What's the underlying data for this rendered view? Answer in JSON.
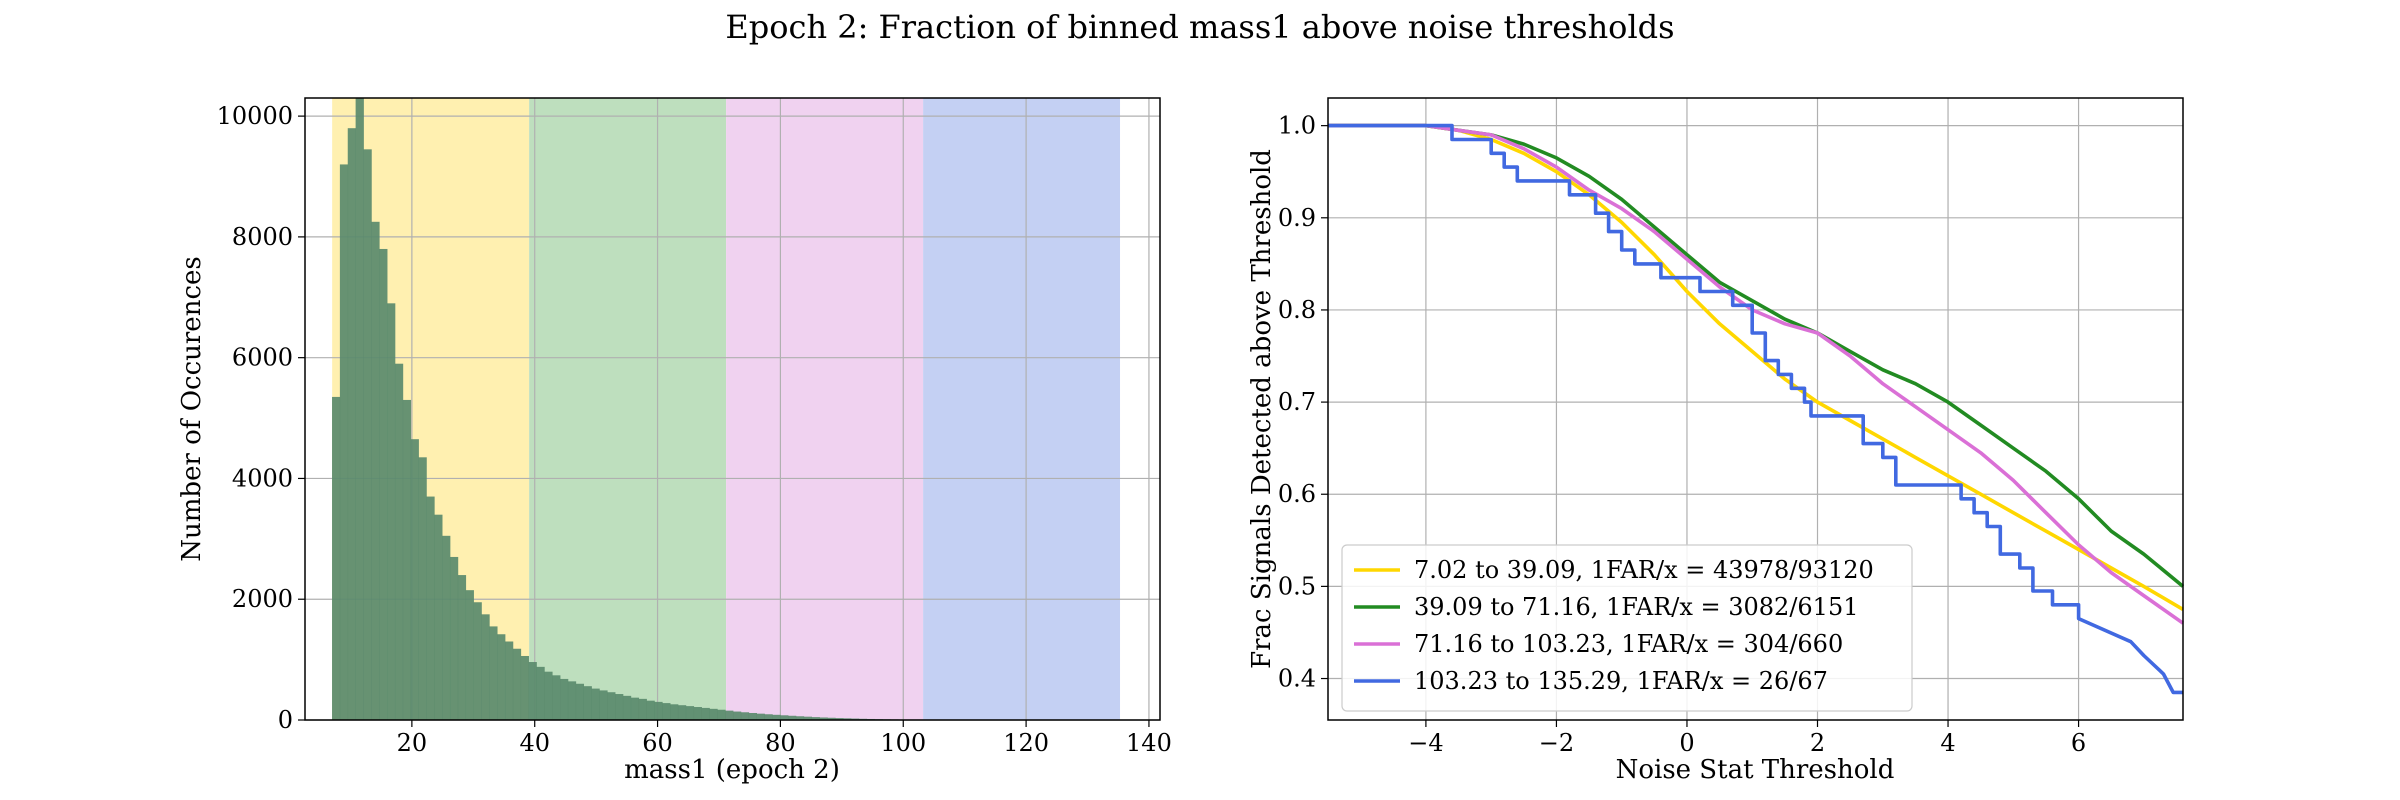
{
  "suptitle": "Epoch 2: Fraction of binned mass1 above noise thresholds",
  "chart_data": [
    {
      "type": "bar",
      "subtype": "histogram",
      "xlabel": "mass1 (epoch 2)",
      "ylabel": "Number of Occurences",
      "xlim": [
        2.6,
        141.8
      ],
      "ylim": [
        0,
        10300
      ],
      "xticks": [
        20,
        40,
        60,
        80,
        100,
        120,
        140
      ],
      "yticks": [
        0,
        2000,
        4000,
        6000,
        8000,
        10000
      ],
      "grid": true,
      "bar_color": "#5a8a6c",
      "shaded_bins": [
        {
          "start": 7.02,
          "end": 39.09,
          "color": "#fff0b0"
        },
        {
          "start": 39.09,
          "end": 71.16,
          "color": "#bedfbe"
        },
        {
          "start": 71.16,
          "end": 103.23,
          "color": "#f0d2f0"
        },
        {
          "start": 103.23,
          "end": 135.29,
          "color": "#c4d0f3"
        }
      ],
      "bin_start": 7.0,
      "bin_width": 1.28,
      "values": [
        5350,
        9200,
        9800,
        10400,
        9450,
        8250,
        7800,
        6900,
        5900,
        5300,
        4650,
        4350,
        3700,
        3400,
        3050,
        2700,
        2400,
        2150,
        1950,
        1750,
        1550,
        1420,
        1300,
        1180,
        1060,
        960,
        880,
        800,
        740,
        680,
        640,
        600,
        560,
        520,
        490,
        460,
        430,
        400,
        370,
        350,
        320,
        300,
        280,
        260,
        245,
        230,
        215,
        200,
        185,
        170,
        155,
        140,
        128,
        116,
        105,
        95,
        86,
        78,
        70,
        62,
        55,
        48,
        42,
        37,
        32,
        28,
        24,
        20,
        17,
        14,
        12,
        10,
        8,
        6,
        5,
        4,
        3,
        2
      ]
    },
    {
      "type": "line",
      "xlabel": "Noise Stat Threshold",
      "ylabel": "Frac Signals Detected above Threshold",
      "xlim": [
        -5.5,
        7.6
      ],
      "ylim": [
        0.355,
        1.03
      ],
      "xticks": [
        -4,
        -2,
        0,
        2,
        4,
        6
      ],
      "xtick_labels": [
        "−4",
        "−2",
        "0",
        "2",
        "4",
        "6"
      ],
      "yticks": [
        0.4,
        0.5,
        0.6,
        0.7,
        0.8,
        0.9,
        1.0
      ],
      "grid": true,
      "legend_position": "lower-left",
      "series": [
        {
          "name": "7.02 to 39.09, 1FAR/x = 43978/93120",
          "color": "#ffd700",
          "style": "smooth",
          "x": [
            -5.5,
            -4,
            -3.5,
            -3,
            -2.5,
            -2,
            -1.5,
            -1,
            -0.5,
            0,
            0.5,
            1,
            1.5,
            2,
            2.5,
            3,
            3.5,
            4,
            4.5,
            5,
            5.5,
            6,
            6.5,
            7,
            7.6
          ],
          "y": [
            1.0,
            1.0,
            0.995,
            0.985,
            0.97,
            0.95,
            0.925,
            0.895,
            0.86,
            0.82,
            0.785,
            0.755,
            0.725,
            0.7,
            0.68,
            0.66,
            0.64,
            0.62,
            0.6,
            0.58,
            0.56,
            0.54,
            0.52,
            0.5,
            0.475
          ]
        },
        {
          "name": "39.09 to 71.16, 1FAR/x = 3082/6151",
          "color": "#228b22",
          "style": "smooth",
          "x": [
            -5.5,
            -4,
            -3.5,
            -3,
            -2.5,
            -2,
            -1.5,
            -1,
            -0.5,
            0,
            0.5,
            1,
            1.5,
            2,
            2.5,
            3,
            3.5,
            4,
            4.5,
            5,
            5.5,
            6,
            6.5,
            7,
            7.6
          ],
          "y": [
            1.0,
            1.0,
            0.995,
            0.99,
            0.98,
            0.965,
            0.945,
            0.92,
            0.89,
            0.86,
            0.83,
            0.81,
            0.79,
            0.775,
            0.755,
            0.735,
            0.72,
            0.7,
            0.675,
            0.65,
            0.625,
            0.595,
            0.56,
            0.535,
            0.5
          ]
        },
        {
          "name": "71.16 to 103.23, 1FAR/x = 304/660",
          "color": "#da70d6",
          "style": "smooth",
          "x": [
            -5.5,
            -4,
            -3.5,
            -3,
            -2.5,
            -2,
            -1.5,
            -1,
            -0.5,
            0,
            0.5,
            1,
            1.5,
            2,
            2.5,
            3,
            3.5,
            4,
            4.5,
            5,
            5.5,
            6,
            6.5,
            7,
            7.6
          ],
          "y": [
            1.0,
            1.0,
            0.995,
            0.99,
            0.975,
            0.955,
            0.93,
            0.91,
            0.885,
            0.855,
            0.825,
            0.8,
            0.785,
            0.775,
            0.75,
            0.72,
            0.695,
            0.67,
            0.645,
            0.615,
            0.58,
            0.545,
            0.515,
            0.49,
            0.46
          ]
        },
        {
          "name": "103.23 to 135.29, 1FAR/x = 26/67",
          "color": "#4169e1",
          "style": "step",
          "x": [
            -5.5,
            -3.6,
            -3.6,
            -3.0,
            -3.0,
            -2.8,
            -2.8,
            -2.6,
            -2.6,
            -1.8,
            -1.8,
            -1.4,
            -1.4,
            -1.2,
            -1.2,
            -1.0,
            -1.0,
            -0.8,
            -0.8,
            -0.6,
            -0.6,
            -0.4,
            -0.4,
            -0.1,
            -0.1,
            0.2,
            0.2,
            0.7,
            0.7,
            1.0,
            1.0,
            1.2,
            1.2,
            1.4,
            1.4,
            1.6,
            1.6,
            1.8,
            1.8,
            1.9,
            1.9,
            2.7,
            2.7,
            3.0,
            3.0,
            3.2,
            3.2,
            4.2,
            4.2,
            4.4,
            4.4,
            4.6,
            4.6,
            4.8,
            4.8,
            5.1,
            5.1,
            5.3,
            5.3,
            5.6,
            5.6,
            6.0,
            6.0,
            6.8,
            7.0,
            7.3,
            7.45,
            7.6
          ],
          "y": [
            1.0,
            1.0,
            0.985,
            0.985,
            0.97,
            0.97,
            0.955,
            0.955,
            0.94,
            0.94,
            0.925,
            0.925,
            0.905,
            0.905,
            0.885,
            0.885,
            0.865,
            0.865,
            0.85,
            0.85,
            0.85,
            0.85,
            0.835,
            0.835,
            0.835,
            0.835,
            0.82,
            0.82,
            0.805,
            0.805,
            0.775,
            0.775,
            0.745,
            0.745,
            0.73,
            0.73,
            0.715,
            0.715,
            0.7,
            0.7,
            0.685,
            0.685,
            0.655,
            0.655,
            0.64,
            0.64,
            0.61,
            0.61,
            0.595,
            0.595,
            0.58,
            0.58,
            0.565,
            0.565,
            0.535,
            0.535,
            0.52,
            0.52,
            0.495,
            0.495,
            0.48,
            0.48,
            0.465,
            0.44,
            0.425,
            0.405,
            0.385,
            0.385
          ]
        }
      ]
    }
  ]
}
